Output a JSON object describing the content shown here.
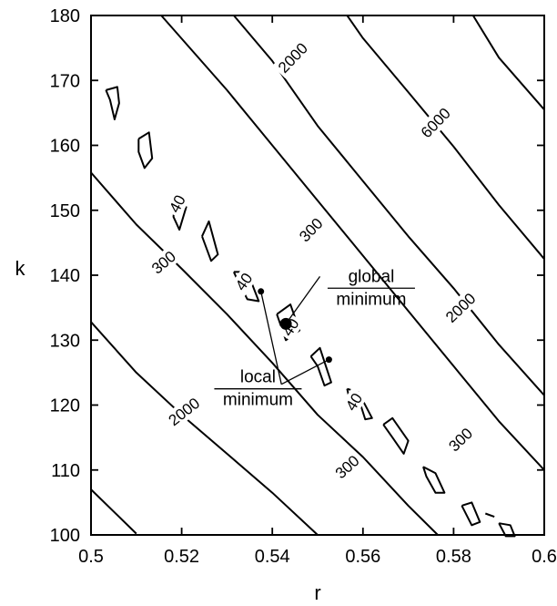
{
  "chart_data": {
    "type": "contour",
    "title": "",
    "xlabel": "r",
    "ylabel": "k",
    "xlim": [
      0.5,
      0.6
    ],
    "ylim": [
      100,
      180
    ],
    "x_ticks": [
      0.5,
      0.52,
      0.54,
      0.56,
      0.58,
      0.6
    ],
    "y_ticks": [
      100,
      110,
      120,
      130,
      140,
      150,
      160,
      170,
      180
    ],
    "grid": false,
    "contour_levels": [
      {
        "level": "40",
        "lines": [
          [
            [
              0.5033,
              168.5
            ],
            [
              0.5058,
              169
            ],
            [
              0.5062,
              166.5
            ],
            [
              0.5052,
              164
            ],
            [
              0.5042,
              167
            ],
            [
              0.5033,
              168.5
            ]
          ],
          [
            [
              0.5105,
              161
            ],
            [
              0.5128,
              162
            ],
            [
              0.5135,
              158
            ],
            [
              0.5118,
              156.5
            ],
            [
              0.5105,
              159
            ],
            [
              0.5105,
              161
            ]
          ],
          [
            [
              0.5185,
              151
            ],
            [
              0.521,
              150.5
            ],
            [
              0.5195,
              147
            ],
            [
              0.5182,
              149
            ],
            [
              0.5185,
              151
            ]
          ],
          [
            [
              0.5245,
              146
            ],
            [
              0.526,
              148.3
            ],
            [
              0.528,
              143.2
            ],
            [
              0.5265,
              142.2
            ],
            [
              0.5245,
              146
            ]
          ],
          [
            [
              0.5315,
              140.5
            ],
            [
              0.5345,
              140.5
            ],
            [
              0.537,
              136
            ],
            [
              0.5345,
              136.3
            ],
            [
              0.5325,
              139
            ],
            [
              0.5315,
              140.5
            ]
          ],
          [
            [
              0.541,
              134
            ],
            [
              0.544,
              135.5
            ],
            [
              0.546,
              131.5
            ],
            [
              0.543,
              130
            ],
            [
              0.541,
              134
            ]
          ],
          [
            [
              0.5485,
              127.5
            ],
            [
              0.5505,
              128.8
            ],
            [
              0.553,
              123.5
            ],
            [
              0.5515,
              123
            ],
            [
              0.55,
              126
            ],
            [
              0.5485,
              127.5
            ]
          ],
          [
            [
              0.5565,
              122.5
            ],
            [
              0.559,
              122
            ],
            [
              0.562,
              118
            ],
            [
              0.5605,
              117.8
            ],
            [
              0.5595,
              120
            ],
            [
              0.557,
              121
            ],
            [
              0.5565,
              122.5
            ]
          ],
          [
            [
              0.5645,
              117
            ],
            [
              0.5665,
              118
            ],
            [
              0.57,
              114.5
            ],
            [
              0.569,
              112.5
            ],
            [
              0.5665,
              115
            ],
            [
              0.5645,
              117
            ]
          ],
          [
            [
              0.5733,
              110.5
            ],
            [
              0.576,
              109.5
            ],
            [
              0.578,
              106.5
            ],
            [
              0.576,
              106.5
            ],
            [
              0.574,
              109
            ],
            [
              0.5733,
              110.5
            ]
          ],
          [
            [
              0.5818,
              104.5
            ],
            [
              0.584,
              105
            ],
            [
              0.5858,
              102
            ],
            [
              0.584,
              101.5
            ],
            [
              0.5818,
              104.5
            ]
          ],
          [
            [
              0.587,
              103.3
            ],
            [
              0.589,
              102.8
            ]
          ],
          [
            [
              0.59,
              101.8
            ],
            [
              0.5925,
              101.5
            ],
            [
              0.5935,
              99.8
            ],
            [
              0.5915,
              99.8
            ],
            [
              0.59,
              101.8
            ]
          ]
        ]
      },
      {
        "level": "300",
        "lines": [
          [
            [
              0.5,
              155.8
            ],
            [
              0.51,
              147.8
            ],
            [
              0.52,
              141
            ],
            [
              0.53,
              134
            ],
            [
              0.54,
              126.5
            ],
            [
              0.55,
              118.5
            ],
            [
              0.56,
              112
            ],
            [
              0.57,
              104.5
            ],
            [
              0.5765,
              100
            ]
          ],
          [
            [
              0.5155,
              180
            ],
            [
              0.53,
              168.5
            ],
            [
              0.54,
              160
            ],
            [
              0.55,
              151.5
            ],
            [
              0.56,
              143
            ],
            [
              0.57,
              134.5
            ],
            [
              0.58,
              126
            ],
            [
              0.59,
              117.5
            ],
            [
              0.6,
              110
            ]
          ]
        ]
      },
      {
        "level": "2000",
        "lines": [
          [
            [
              0.5,
              132.8
            ],
            [
              0.51,
              125
            ],
            [
              0.52,
              118.5
            ],
            [
              0.53,
              112.5
            ],
            [
              0.54,
              106.5
            ],
            [
              0.55,
              100
            ]
          ],
          [
            [
              0.5315,
              180
            ],
            [
              0.54,
              173
            ],
            [
              0.55,
              163
            ],
            [
              0.56,
              154.5
            ],
            [
              0.57,
              146
            ],
            [
              0.58,
              138
            ],
            [
              0.59,
              129.3
            ],
            [
              0.6,
              121.5
            ]
          ]
        ]
      },
      {
        "level": "6000",
        "lines": [
          [
            [
              0.5,
              107
            ],
            [
              0.51,
              100.2
            ]
          ],
          [
            [
              0.5565,
              180
            ],
            [
              0.56,
              176.5
            ],
            [
              0.57,
              168.2
            ],
            [
              0.58,
              159.8
            ],
            [
              0.59,
              150.8
            ],
            [
              0.6,
              142.5
            ]
          ],
          [
            [
              0.5843,
              180
            ],
            [
              0.59,
              173.5
            ],
            [
              0.6,
              165.5
            ]
          ]
        ]
      }
    ],
    "contour_labels": [
      {
        "text": "2000",
        "x": 0.5445,
        "y": 173.5,
        "angle": -46
      },
      {
        "text": "6000",
        "x": 0.576,
        "y": 163.5,
        "angle": -46
      },
      {
        "text": "40",
        "x": 0.519,
        "y": 151,
        "angle": -62
      },
      {
        "text": "300",
        "x": 0.5485,
        "y": 147,
        "angle": -46
      },
      {
        "text": "300",
        "x": 0.516,
        "y": 142,
        "angle": -40
      },
      {
        "text": "40",
        "x": 0.5337,
        "y": 139,
        "angle": -55
      },
      {
        "text": "40",
        "x": 0.544,
        "y": 132,
        "angle": -57
      },
      {
        "text": "2000",
        "x": 0.5815,
        "y": 135,
        "angle": -44
      },
      {
        "text": "40",
        "x": 0.558,
        "y": 120.5,
        "angle": -58
      },
      {
        "text": "300",
        "x": 0.5815,
        "y": 114.7,
        "angle": -44
      },
      {
        "text": "2000",
        "x": 0.5205,
        "y": 119,
        "angle": -38
      },
      {
        "text": "300",
        "x": 0.5565,
        "y": 110.5,
        "angle": -42
      }
    ],
    "points": [
      {
        "name": "global minimum",
        "r": 0.543,
        "k": 132.5,
        "size": "large"
      },
      {
        "name": "local minimum",
        "r": 0.5375,
        "k": 137.5,
        "size": "small"
      },
      {
        "name": "local minimum",
        "r": 0.5525,
        "k": 127,
        "size": "small"
      }
    ],
    "annotations": [
      {
        "id": "global",
        "line1": "global",
        "line2": "minimum",
        "label_r": 0.553,
        "label_k": 138,
        "leader_start": [
          0.5505,
          139.8
        ],
        "leader_points": [
          [
            0.543,
            132.5
          ]
        ]
      },
      {
        "id": "local",
        "line1": "local",
        "line2": "minimum",
        "label_r": 0.528,
        "label_k": 122.5,
        "leader_start": [
          0.542,
          123.2
        ],
        "leader_points": [
          [
            0.5375,
            137.5
          ],
          [
            0.5525,
            127
          ]
        ]
      }
    ]
  }
}
